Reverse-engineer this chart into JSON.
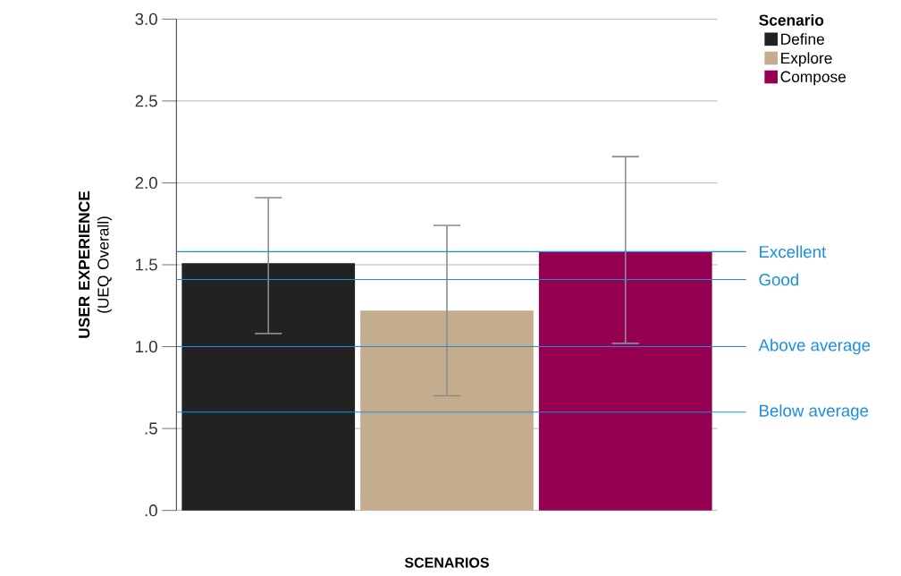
{
  "chart_data": {
    "type": "bar",
    "categories": [
      null
    ],
    "series": [
      {
        "name": "Define",
        "color": "#222222",
        "values": [
          1.51
        ],
        "errors": [
          [
            1.08,
            1.91
          ]
        ]
      },
      {
        "name": "Explore",
        "color": "#c4ad8c",
        "values": [
          1.22
        ],
        "errors": [
          [
            0.7,
            1.74
          ]
        ]
      },
      {
        "name": "Compose",
        "color": "#960051",
        "values": [
          1.58
        ],
        "errors": [
          [
            1.02,
            2.16
          ]
        ]
      }
    ],
    "xlabel": "SCENARIOS",
    "ylabel": "**USER EXPERIENCE** (UEQ Overall)",
    "legend_title": "Scenario",
    "legend": "top right",
    "ylim": [
      0,
      3.0
    ],
    "yticks": [
      {
        "value": 0,
        "label": ".0"
      },
      {
        "value": 0.5,
        "label": ".5"
      },
      {
        "value": 1.0,
        "label": "1.0"
      },
      {
        "value": 1.5,
        "label": "1.5"
      },
      {
        "value": 2.0,
        "label": "2.0"
      },
      {
        "value": 2.5,
        "label": "2.5"
      },
      {
        "value": 3.0,
        "label": "3.0"
      }
    ],
    "grid": "y",
    "tick_labels": "y",
    "ref_lines": [
      {
        "axis": "y",
        "value": 1.58,
        "label": "Excellent",
        "color": "#1a8fe0"
      },
      {
        "axis": "y",
        "value": 1.41,
        "label": "Good",
        "color": "#1a8fe0"
      },
      {
        "axis": "y",
        "value": 1.0,
        "label": "Above average",
        "color": "#1a8fe0"
      },
      {
        "axis": "y",
        "value": 0.6,
        "label": "Below average",
        "color": "#1a8fe0"
      }
    ]
  }
}
